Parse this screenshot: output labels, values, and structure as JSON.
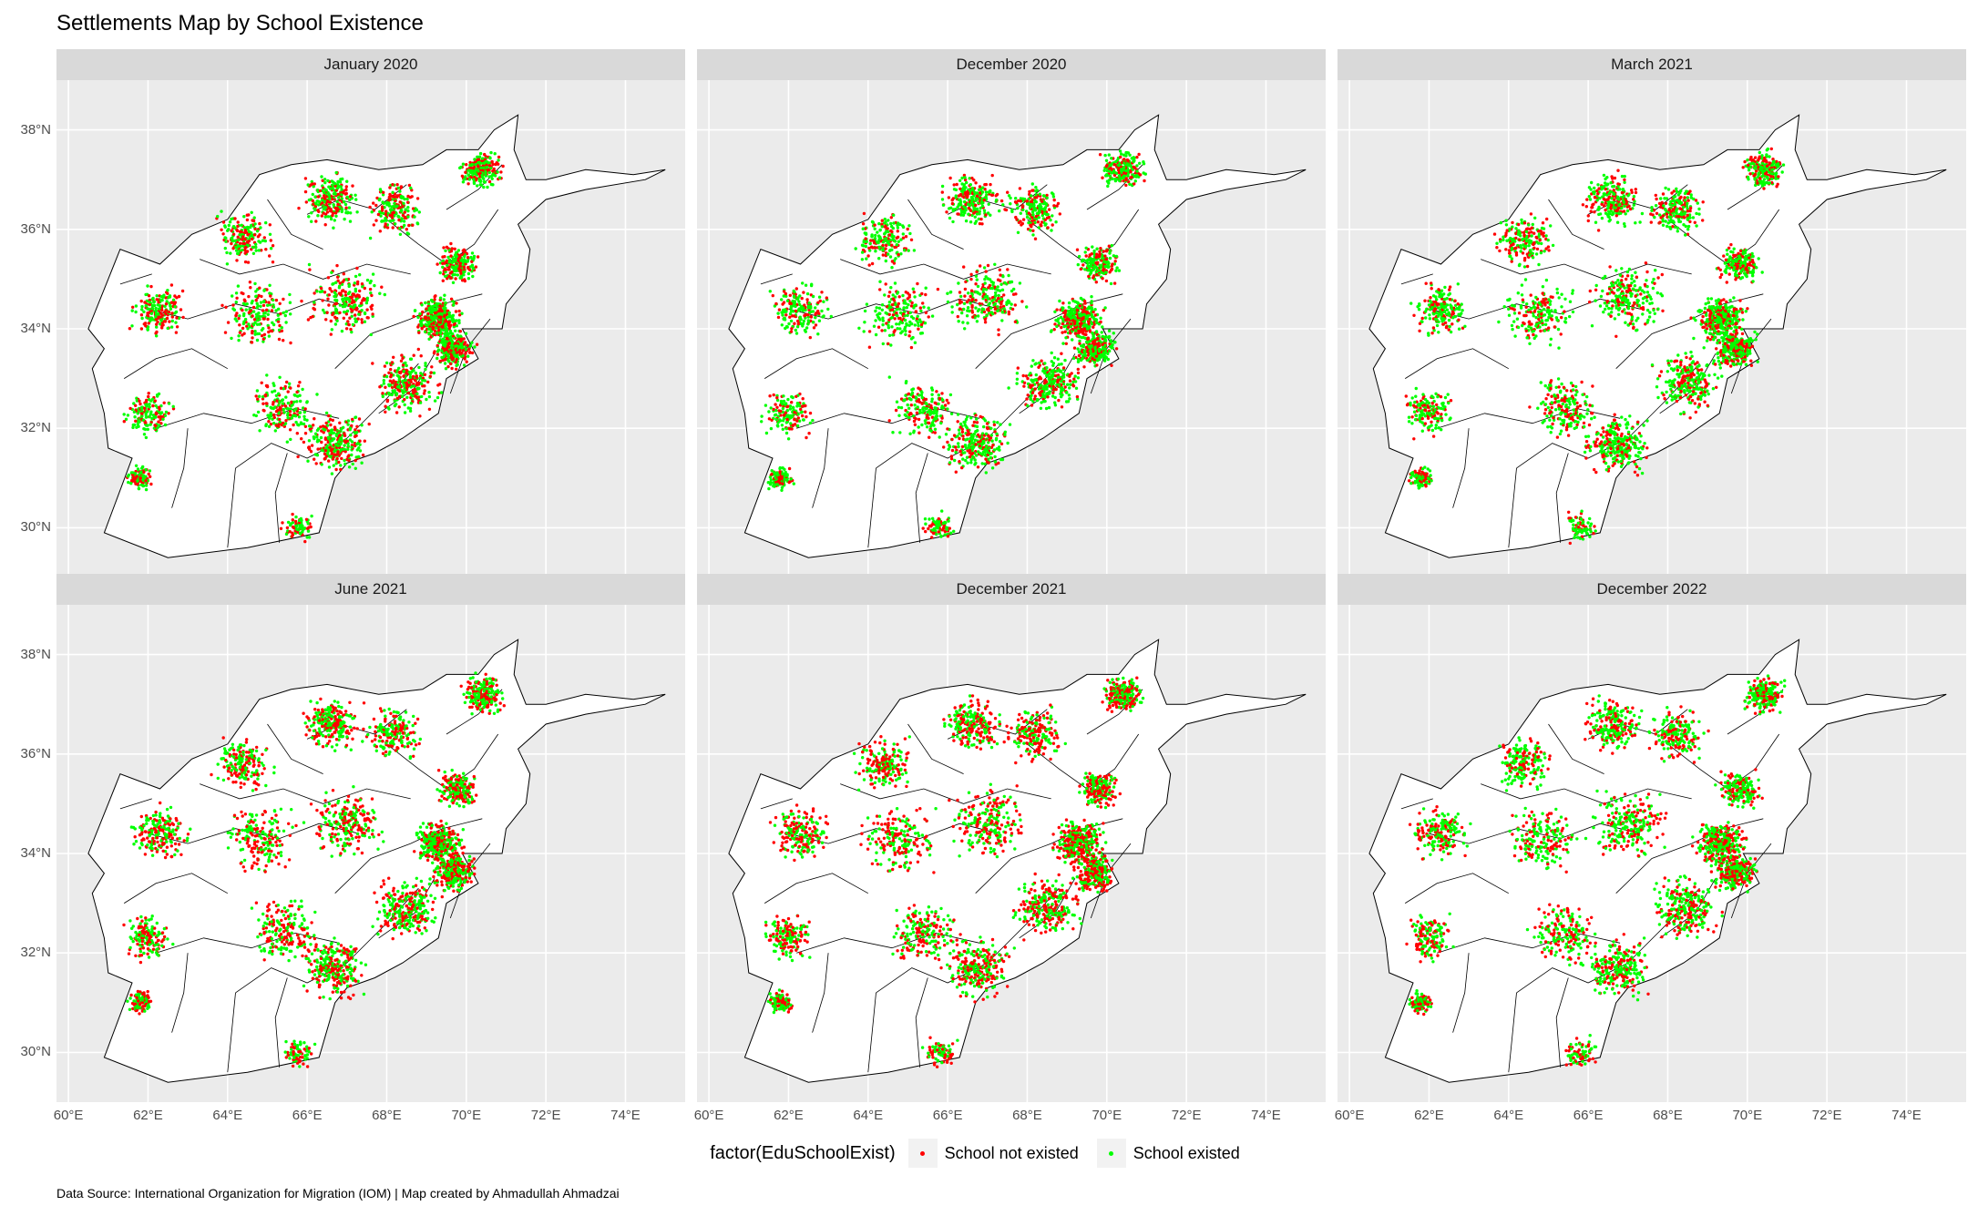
{
  "title": "Settlements Map by School Existence",
  "facets": [
    "January 2020",
    "December 2020",
    "March 2021",
    "June 2021",
    "December 2021",
    "December 2022"
  ],
  "axes": {
    "y_ticks": [
      "38°N",
      "36°N",
      "34°N",
      "32°N",
      "30°N"
    ],
    "x_ticks": [
      "60°E",
      "62°E",
      "64°E",
      "66°E",
      "68°E",
      "70°E",
      "72°E",
      "74°E"
    ],
    "y_values": [
      38,
      36,
      34,
      32,
      30
    ],
    "x_values": [
      60,
      62,
      64,
      66,
      68,
      70,
      72,
      74
    ],
    "lon_range": [
      59.7,
      75.5
    ],
    "lat_range": [
      29.0,
      39.0
    ]
  },
  "legend": {
    "title": "factor(EduSchoolExist)",
    "items": [
      {
        "label": "School not existed",
        "color": "#ff0000"
      },
      {
        "label": "School existed",
        "color": "#00ff00"
      }
    ]
  },
  "caption": "Data Source: International Organization for Migration (IOM) | Map created by Ahmadullah Ahmadzai",
  "colors": {
    "panel_bg": "#ebebeb",
    "strip_bg": "#d9d9d9",
    "grid": "#ffffff",
    "not_existed": "#ff0000",
    "existed": "#00ff00"
  }
}
